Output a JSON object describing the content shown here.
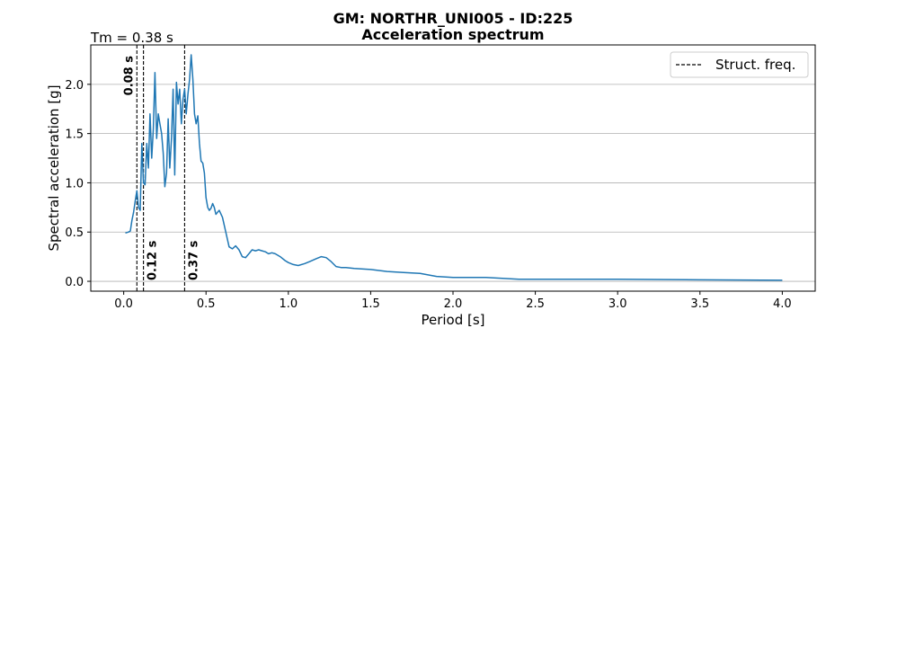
{
  "chart_data": {
    "type": "line",
    "title": "GM: NORTHR_UNI005 - ID:225",
    "subtitle": "Acceleration spectrum",
    "xlabel": "Period [s]",
    "ylabel": "Spectral acceleration [g]",
    "xlim": [
      -0.2,
      4.2
    ],
    "ylim": [
      -0.1,
      2.4
    ],
    "xticks": [
      0.0,
      0.5,
      1.0,
      1.5,
      2.0,
      2.5,
      3.0,
      3.5,
      4.0
    ],
    "xtick_labels": [
      "0.0",
      "0.5",
      "1.0",
      "1.5",
      "2.0",
      "2.5",
      "3.0",
      "3.5",
      "4.0"
    ],
    "yticks": [
      0.0,
      0.5,
      1.0,
      1.5,
      2.0
    ],
    "ytick_labels": [
      "0.0",
      "0.5",
      "1.0",
      "1.5",
      "2.0"
    ],
    "grid": "y",
    "legend_position": "top-right",
    "tm_annotation": "Tm = 0.38 s",
    "series": [
      {
        "color": "#1f77b4",
        "x": [
          0.01,
          0.03,
          0.04,
          0.05,
          0.06,
          0.07,
          0.08,
          0.09,
          0.1,
          0.11,
          0.12,
          0.13,
          0.14,
          0.15,
          0.16,
          0.17,
          0.18,
          0.19,
          0.2,
          0.21,
          0.22,
          0.23,
          0.24,
          0.25,
          0.26,
          0.27,
          0.28,
          0.29,
          0.3,
          0.31,
          0.32,
          0.33,
          0.34,
          0.35,
          0.36,
          0.37,
          0.38,
          0.39,
          0.4,
          0.41,
          0.42,
          0.43,
          0.44,
          0.45,
          0.46,
          0.47,
          0.48,
          0.49,
          0.5,
          0.51,
          0.52,
          0.53,
          0.54,
          0.55,
          0.56,
          0.57,
          0.58,
          0.6,
          0.62,
          0.64,
          0.66,
          0.68,
          0.7,
          0.72,
          0.74,
          0.76,
          0.78,
          0.8,
          0.82,
          0.84,
          0.86,
          0.88,
          0.9,
          0.92,
          0.95,
          0.98,
          1.0,
          1.03,
          1.06,
          1.1,
          1.13,
          1.17,
          1.2,
          1.23,
          1.26,
          1.29,
          1.32,
          1.35,
          1.4,
          1.5,
          1.6,
          1.7,
          1.8,
          1.9,
          2.0,
          2.1,
          2.2,
          2.3,
          2.4,
          2.5,
          2.7,
          3.0,
          3.5,
          4.0
        ],
        "values": [
          0.49,
          0.5,
          0.51,
          0.62,
          0.7,
          0.82,
          0.92,
          0.75,
          0.72,
          1.4,
          1.0,
          0.98,
          1.4,
          1.15,
          1.7,
          1.25,
          1.55,
          2.12,
          1.45,
          1.7,
          1.6,
          1.5,
          1.3,
          0.96,
          1.1,
          1.65,
          1.15,
          1.45,
          1.95,
          1.08,
          2.02,
          1.8,
          1.95,
          1.6,
          1.85,
          1.95,
          1.7,
          1.9,
          2.05,
          2.3,
          2.05,
          1.7,
          1.6,
          1.68,
          1.4,
          1.22,
          1.2,
          1.1,
          0.85,
          0.75,
          0.72,
          0.74,
          0.79,
          0.75,
          0.68,
          0.7,
          0.72,
          0.65,
          0.5,
          0.35,
          0.33,
          0.36,
          0.32,
          0.25,
          0.24,
          0.28,
          0.32,
          0.31,
          0.32,
          0.31,
          0.3,
          0.28,
          0.29,
          0.28,
          0.25,
          0.21,
          0.19,
          0.17,
          0.16,
          0.18,
          0.2,
          0.23,
          0.25,
          0.24,
          0.2,
          0.15,
          0.14,
          0.14,
          0.13,
          0.12,
          0.1,
          0.09,
          0.08,
          0.05,
          0.04,
          0.04,
          0.04,
          0.03,
          0.02,
          0.02,
          0.02,
          0.02,
          0.015,
          0.01
        ]
      }
    ],
    "struct_freq": {
      "legend_label": "Struct. freq.",
      "lines": [
        {
          "x": 0.08,
          "label": "0.08 s",
          "label_position": "top"
        },
        {
          "x": 0.12,
          "label": "0.12 s",
          "label_position": "bottom"
        },
        {
          "x": 0.37,
          "label": "0.37 s",
          "label_position": "bottom"
        }
      ]
    }
  }
}
